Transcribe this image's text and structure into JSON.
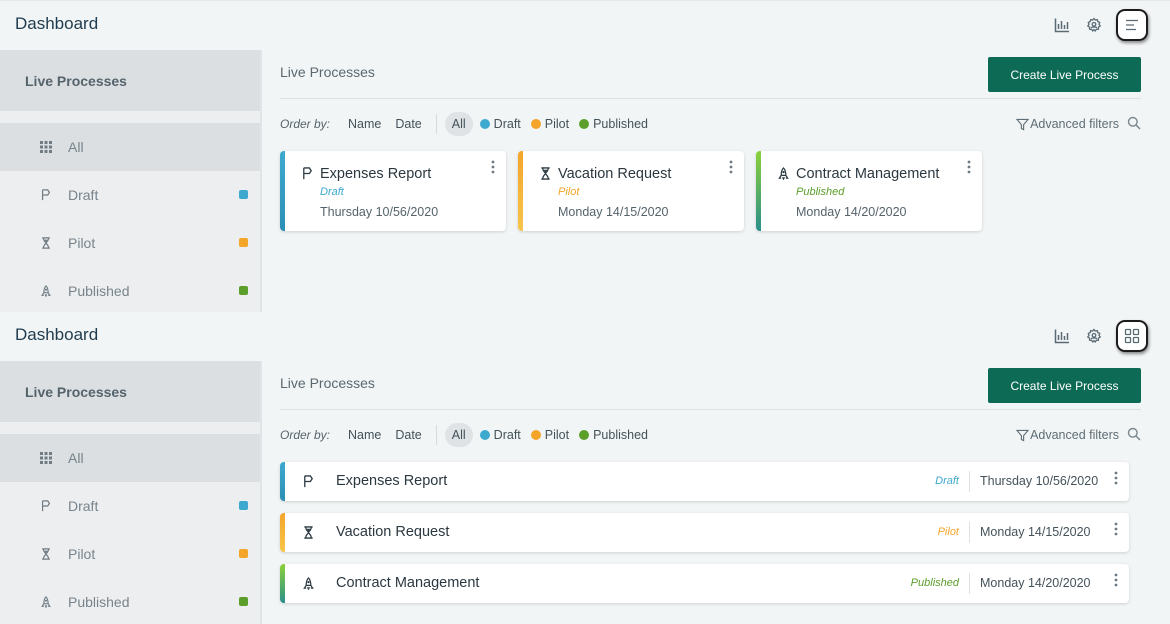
{
  "colors": {
    "draft": "#3ea9cf",
    "pilot": "#f3a52a",
    "published": "#5b9e2a",
    "primary": "#0d6b55"
  },
  "header": {
    "title": "Dashboard",
    "icons": [
      "bar-chart-icon",
      "settings-user-icon",
      "list-view-icon",
      "grid-view-icon"
    ]
  },
  "sidebar": {
    "header": "Live Processes",
    "items": [
      {
        "label": "All",
        "icon": "grid-icon"
      },
      {
        "label": "Draft",
        "icon": "draft-flag-icon"
      },
      {
        "label": "Pilot",
        "icon": "hourglass-icon"
      },
      {
        "label": "Published",
        "icon": "rocket-icon"
      }
    ]
  },
  "content": {
    "title": "Live Processes",
    "create_label": "Create Live Process"
  },
  "filters": {
    "order_by_label": "Order by:",
    "order_name": "Name",
    "order_date": "Date",
    "all": "All",
    "draft": "Draft",
    "pilot": "Pilot",
    "published": "Published",
    "advanced": "Advanced filters"
  },
  "processes": [
    {
      "name": "Expenses Report",
      "status": "Draft",
      "date": "Thursday 10/56/2020"
    },
    {
      "name": "Vacation Request",
      "status": "Pilot",
      "date": "Monday 14/15/2020"
    },
    {
      "name": "Contract Management",
      "status": "Published",
      "date": "Monday 14/20/2020"
    }
  ]
}
